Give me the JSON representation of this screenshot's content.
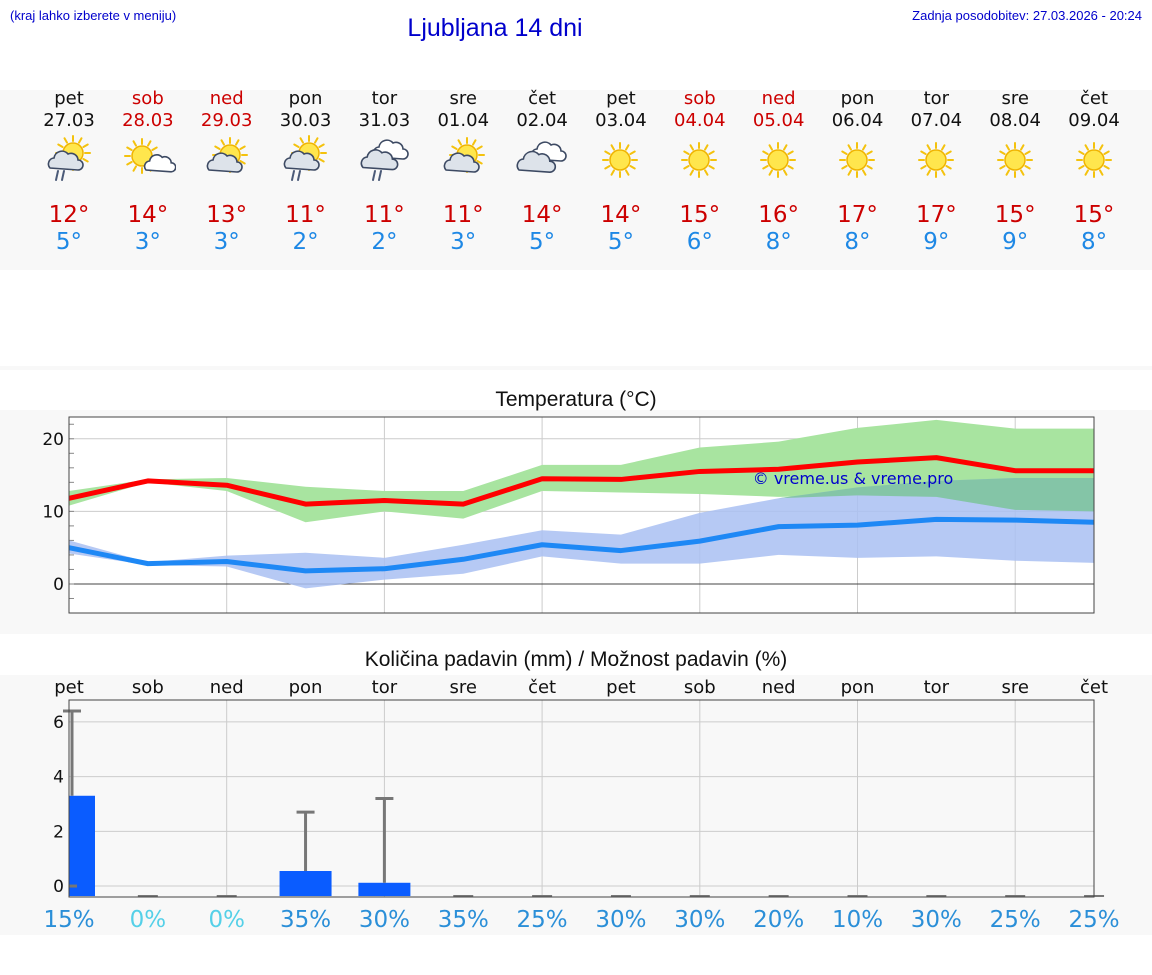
{
  "header": {
    "hint": "(kraj lahko izberete v meniju)",
    "title": "Ljubljana 14 dni",
    "updated": "Zadnja posodobitev: 27.03.2026 - 20:24"
  },
  "days": [
    {
      "name": "pet",
      "date": "27.03",
      "weekend": false,
      "icon": "sun-cloud-rain-icon",
      "tmax": "12°",
      "tmin": "5°"
    },
    {
      "name": "sob",
      "date": "28.03",
      "weekend": true,
      "icon": "sun-small-cloud-icon",
      "tmax": "14°",
      "tmin": "3°"
    },
    {
      "name": "ned",
      "date": "29.03",
      "weekend": true,
      "icon": "sun-cloud-icon",
      "tmax": "13°",
      "tmin": "3°"
    },
    {
      "name": "pon",
      "date": "30.03",
      "weekend": false,
      "icon": "sun-cloud-rain-icon",
      "tmax": "11°",
      "tmin": "2°"
    },
    {
      "name": "tor",
      "date": "31.03",
      "weekend": false,
      "icon": "cloud-rain-icon",
      "tmax": "11°",
      "tmin": "2°"
    },
    {
      "name": "sre",
      "date": "01.04",
      "weekend": false,
      "icon": "sun-cloud-icon",
      "tmax": "11°",
      "tmin": "3°"
    },
    {
      "name": "čet",
      "date": "02.04",
      "weekend": false,
      "icon": "cloudy-icon",
      "tmax": "14°",
      "tmin": "5°"
    },
    {
      "name": "pet",
      "date": "03.04",
      "weekend": false,
      "icon": "sun-icon",
      "tmax": "14°",
      "tmin": "5°"
    },
    {
      "name": "sob",
      "date": "04.04",
      "weekend": true,
      "icon": "sun-icon",
      "tmax": "15°",
      "tmin": "6°"
    },
    {
      "name": "ned",
      "date": "05.04",
      "weekend": true,
      "icon": "sun-icon",
      "tmax": "16°",
      "tmin": "8°"
    },
    {
      "name": "pon",
      "date": "06.04",
      "weekend": false,
      "icon": "sun-icon",
      "tmax": "17°",
      "tmin": "8°"
    },
    {
      "name": "tor",
      "date": "07.04",
      "weekend": false,
      "icon": "sun-icon",
      "tmax": "17°",
      "tmin": "9°"
    },
    {
      "name": "sre",
      "date": "08.04",
      "weekend": false,
      "icon": "sun-icon",
      "tmax": "15°",
      "tmin": "9°"
    },
    {
      "name": "čet",
      "date": "09.04",
      "weekend": false,
      "icon": "sun-icon",
      "tmax": "15°",
      "tmin": "8°"
    }
  ],
  "colors": {
    "max_line": "#ff0000",
    "max_band": "#a8e4a0",
    "min_line": "#1e88f5",
    "min_band": "#a9c0f2",
    "overlap_band": "#7fc4a0",
    "precip_bar": "#0a5cff",
    "weekend": "#cc0000",
    "prob_zero": "#55d0e8",
    "prob": "#2b8fd8"
  },
  "chart_data": [
    {
      "type": "line",
      "title": "Temperatura (°C)",
      "watermark": "© vreme.us & vreme.pro",
      "ylim": [
        -4,
        23
      ],
      "yticks": [
        0,
        10,
        20
      ],
      "x": [
        0,
        1,
        2,
        3,
        4,
        5,
        6,
        7,
        8,
        9,
        10,
        11,
        12,
        13
      ],
      "series": [
        {
          "name": "max",
          "values": [
            11.8,
            14.2,
            13.6,
            11.0,
            11.5,
            11.0,
            14.5,
            14.4,
            15.5,
            15.8,
            16.8,
            17.4,
            15.6,
            15.6
          ],
          "band_low": [
            10.8,
            14.0,
            12.8,
            8.5,
            10.0,
            9.0,
            12.8,
            12.6,
            12.4,
            12.0,
            12.2,
            12.0,
            10.2,
            10.0
          ],
          "band_high": [
            12.8,
            14.4,
            14.6,
            13.4,
            12.8,
            12.8,
            16.4,
            16.4,
            18.8,
            19.6,
            21.5,
            22.6,
            21.4,
            21.4
          ]
        },
        {
          "name": "min",
          "values": [
            5.0,
            2.8,
            3.1,
            1.8,
            2.1,
            3.4,
            5.4,
            4.6,
            5.9,
            7.9,
            8.1,
            8.9,
            8.8,
            8.5
          ],
          "band_low": [
            4.2,
            2.6,
            2.4,
            -0.6,
            0.6,
            1.4,
            3.8,
            2.8,
            2.8,
            4.0,
            3.6,
            3.8,
            3.2,
            2.9
          ],
          "band_high": [
            6.0,
            3.0,
            3.9,
            4.3,
            3.6,
            5.4,
            7.4,
            6.8,
            9.8,
            11.8,
            13.3,
            14.2,
            14.6,
            14.6
          ]
        }
      ]
    },
    {
      "type": "bar",
      "title": "Količina padavin (mm) / Možnost padavin (%)",
      "categories": [
        "pet",
        "sob",
        "ned",
        "pon",
        "tor",
        "sre",
        "čet",
        "pet",
        "sob",
        "ned",
        "pon",
        "tor",
        "sre",
        "čet"
      ],
      "ylim": [
        -0.4,
        6.8
      ],
      "yticks": [
        0,
        2,
        4,
        6
      ],
      "values": [
        3.3,
        0,
        0,
        0.55,
        0.12,
        0,
        0,
        0,
        0,
        0,
        0,
        0,
        0,
        0
      ],
      "error_max": [
        6.4,
        0,
        0,
        2.7,
        3.2,
        0,
        0,
        0,
        0,
        0,
        0,
        0,
        0,
        0
      ],
      "probability": [
        "15%",
        "0%",
        "0%",
        "35%",
        "30%",
        "35%",
        "25%",
        "30%",
        "30%",
        "20%",
        "10%",
        "30%",
        "25%",
        "25%"
      ]
    }
  ]
}
